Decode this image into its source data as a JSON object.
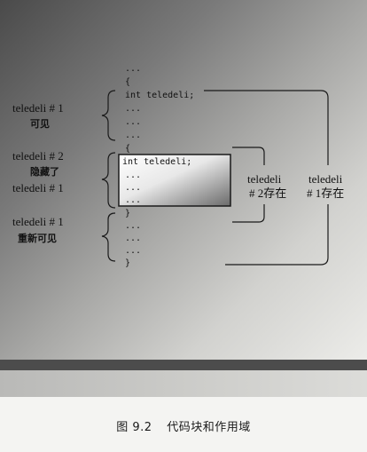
{
  "figure": {
    "code_lines_outer_top": [
      "...",
      "{"
    ],
    "code_decl_outer": "int teledeli;",
    "code_outer_dots": [
      "...",
      "...",
      "..."
    ],
    "code_inner_open": "{",
    "code_decl_inner": "int teledeli;",
    "code_inner_dots": [
      "...",
      "...",
      "..."
    ],
    "code_inner_close": "}",
    "code_after_dots": [
      "...",
      "...",
      "..."
    ],
    "code_outer_close": "}",
    "left_labels": {
      "visible_1_name": "teledeli # 1",
      "visible_1_state": "可见",
      "hidden_2_name": "teledeli # 2",
      "hidden_state": "隐藏了",
      "hidden_1_name": "teledeli # 1",
      "revisible_1_name": "teledeli # 1",
      "revisible_state": "重新可见"
    },
    "right_labels": {
      "inner_var": "teledeli",
      "inner_exists": "# 2存在",
      "outer_var": "teledeli",
      "outer_exists": "# 1存在"
    }
  },
  "caption": {
    "number": "图 9.2",
    "title": "代码块和作用域"
  }
}
